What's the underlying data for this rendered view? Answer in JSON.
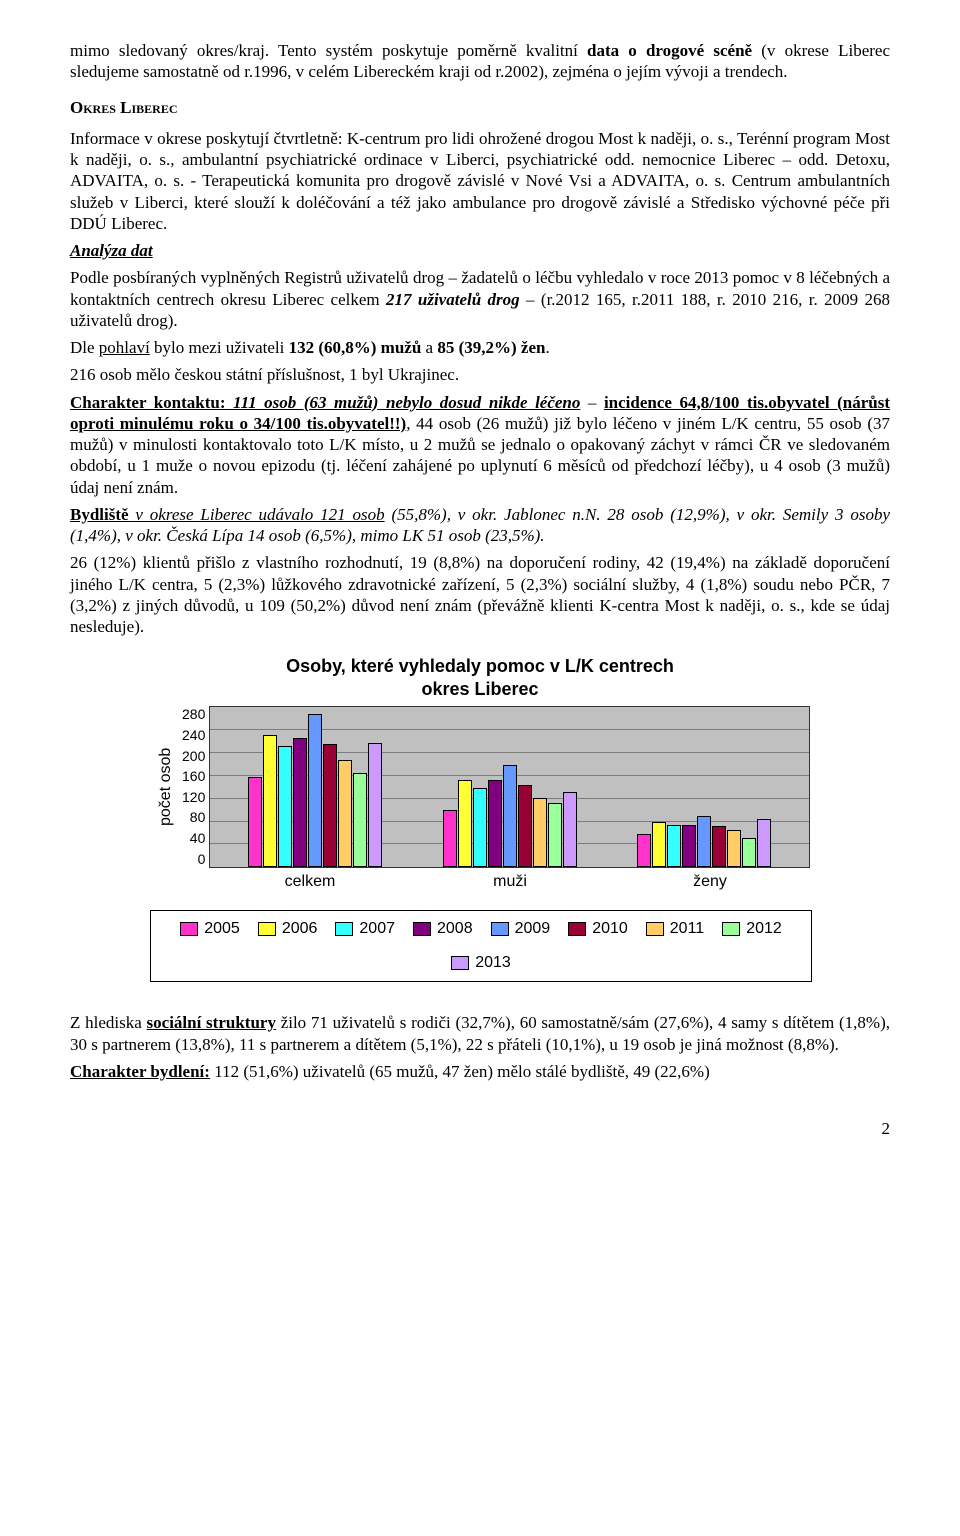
{
  "intro": {
    "p1": "mimo sledovaný okres/kraj. Tento systém poskytuje poměrně kvalitní data o drogové scéně (v okrese Liberec sledujeme samostatně od r.1996, v celém Libereckém kraji od r.2002), zejména o jejím vývoji a trendech."
  },
  "heading_okres": "Okres Liberec",
  "okres": {
    "p1": "Informace v  okrese  poskytují čtvrtletně: K-centrum pro lidi ohrožené drogou Most k naději, o. s., Terénní program Most k naději, o. s., ambulantní psychiatrické ordinace v  Liberci, psychiatrické odd. nemocnice Liberec – odd. Detoxu, ADVAITA, o. s.  - Terapeutická komunita  pro drogově závislé v Nové Vsi a ADVAITA, o. s. Centrum ambulantních služeb v Liberci, které slouží k doléčování a též jako ambulance pro drogově závislé a Středisko výchovné péče při DDÚ Liberec."
  },
  "analysis_heading": "Analýza dat",
  "analysis": {
    "p1a": "Podle posbíraných vyplněných Registrů uživatelů drog – žadatelů o léčbu vyhledalo v roce 2013 pomoc v 8 léčebných a kontaktních centrech okresu Liberec celkem ",
    "p1b": "217 uživatelů drog",
    "p1c": " – (r.2012 165,  r.2011 188, r. 2010 216, r. 2009 268 uživatelů drog).",
    "p2a": "Dle ",
    "p2b": "pohlaví",
    "p2c": " bylo mezi uživateli ",
    "p2d": "132 (60,8%) mužů",
    "p2e": " a ",
    "p2f": "85 (39,2%) žen",
    "p2g": ".",
    "p3": "216 osob mělo českou státní příslušnost, 1 byl Ukrajinec.",
    "p4a": "Charakter kontaktu:",
    "p4b": " 111 osob (63 mužů) nebylo dosud nikde léčeno",
    "p4c": " – ",
    "p4d": "incidence 64,8/100 tis.obyvatel (nárůst oproti minulému roku o 34/100 tis.obyvatel!!)",
    "p4e": ", 44 osob (26 mužů) již bylo léčeno v jiném L/K centru, 55 osob (37 mužů) v minulosti kontaktovalo toto L/K místo, u 2 mužů se jednalo o opakovaný záchyt v rámci ČR ve sledovaném období, u 1 muže o novou epizodu (tj. léčení zahájené po uplynutí 6 měsíců od předchozí léčby), u 4 osob (3 mužů) údaj není znám.",
    "p5a": "Bydliště",
    "p5b": " v okrese Liberec udávalo 121 osob",
    "p5c": " (55,8%), v okr. Jablonec n.N. 28 osob (12,9%), v okr. Semily 3 osoby (1,4%), v okr. Česká Lípa 14 osob (6,5%), mimo LK 51 osob (23,5%).",
    "p6": "26 (12%) klientů přišlo z vlastního rozhodnutí, 19 (8,8%) na doporučení rodiny, 42 (19,4%) na základě doporučení jiného L/K centra, 5 (2,3%) lůžkového zdravotnické zařízení, 5 (2,3%) sociální služby,  4 (1,8%) soudu nebo PČR,  7 (3,2%) z jiných důvodů,  u 109 (50,2%) důvod není znám (převážně klienti K-centra Most k naději, o. s., kde se údaj nesleduje)."
  },
  "chart": {
    "type": "grouped-bar",
    "title_line1": "Osoby, které vyhledaly pomoc v L/K centrech",
    "title_line2": "okres Liberec",
    "ylabel": "počet osob",
    "ylim_max": 280,
    "yticks": [
      "280",
      "240",
      "200",
      "160",
      "120",
      "80",
      "40",
      "0"
    ],
    "categories": [
      "celkem",
      "muži",
      "ženy"
    ],
    "years": [
      "2005",
      "2006",
      "2007",
      "2008",
      "2009",
      "2010",
      "2011",
      "2012",
      "2013"
    ],
    "series_colors": [
      "#ff33cc",
      "#ffff33",
      "#33ffff",
      "#800080",
      "#6699ff",
      "#990033",
      "#ffcc66",
      "#99ff99",
      "#cc99ff"
    ],
    "plot_bg": "#c0c0c0",
    "grid_color": "#000000",
    "data": {
      "celkem": [
        158,
        232,
        212,
        226,
        268,
        216,
        188,
        165,
        217
      ],
      "muzi": [
        100,
        153,
        138,
        152,
        179,
        144,
        122,
        113,
        132
      ],
      "zeny": [
        58,
        79,
        74,
        74,
        89,
        72,
        66,
        52,
        85
      ]
    }
  },
  "after": {
    "p1a": "Z hlediska ",
    "p1b": "sociální struktury",
    "p1c": " žilo 71 uživatelů s rodiči (32,7%), 60 samostatně/sám (27,6%), 4 samy s dítětem (1,8%), 30 s partnerem (13,8%), 11 s partnerem a dítětem (5,1%), 22 s přáteli (10,1%), u 19 osob je jiná možnost (8,8%).",
    "p2a": "Charakter bydlení:",
    "p2b": " 112 (51,6%) uživatelů (65 mužů, 47 žen) mělo stálé bydliště, 49 (22,6%)"
  },
  "page_number": "2"
}
